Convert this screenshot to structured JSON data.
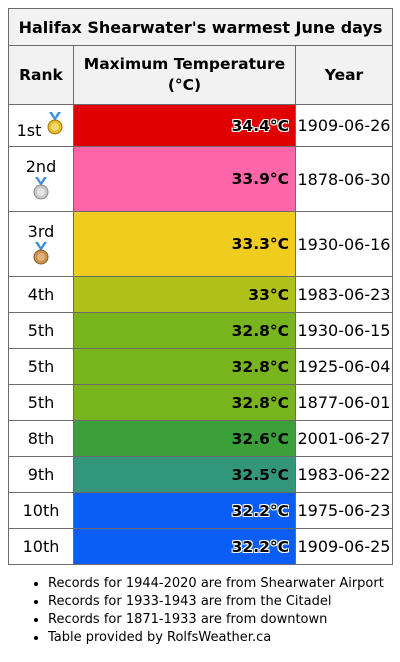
{
  "table": {
    "title": "Halifax Shearwater's warmest June days",
    "headers": {
      "rank": "Rank",
      "temp_line1": "Maximum Temperature",
      "temp_line2": "(°C)",
      "year": "Year"
    },
    "rows": [
      {
        "rank": "1st",
        "medal": "gold-medal-icon",
        "temp": "34.4°C",
        "date": "1909-06-26",
        "color": "#e00000",
        "outlined": true
      },
      {
        "rank": "2nd",
        "medal": "silver-medal-icon",
        "temp": "33.9°C",
        "date": "1878-06-30",
        "color": "#ff66aa",
        "outlined": false
      },
      {
        "rank": "3rd",
        "medal": "bronze-medal-icon",
        "temp": "33.3°C",
        "date": "1930-06-16",
        "color": "#f0cc1e",
        "outlined": false
      },
      {
        "rank": "4th",
        "temp": "33°C",
        "date": "1983-06-23",
        "color": "#b0c21a",
        "outlined": false
      },
      {
        "rank": "5th",
        "temp": "32.8°C",
        "date": "1930-06-15",
        "color": "#78b41e",
        "outlined": false
      },
      {
        "rank": "5th",
        "temp": "32.8°C",
        "date": "1925-06-04",
        "color": "#78b41e",
        "outlined": false
      },
      {
        "rank": "5th",
        "temp": "32.8°C",
        "date": "1877-06-01",
        "color": "#78b41e",
        "outlined": false
      },
      {
        "rank": "8th",
        "temp": "32.6°C",
        "date": "2001-06-27",
        "color": "#3ca03a",
        "outlined": false
      },
      {
        "rank": "9th",
        "temp": "32.5°C",
        "date": "1983-06-22",
        "color": "#32967a",
        "outlined": false
      },
      {
        "rank": "10th",
        "temp": "32.2°C",
        "date": "1975-06-23",
        "color": "#0a5ef5",
        "outlined": true
      },
      {
        "rank": "10th",
        "temp": "32.2°C",
        "date": "1909-06-25",
        "color": "#0a5ef5",
        "outlined": true
      }
    ]
  },
  "notes": [
    "Records for 1944-2020 are from Shearwater Airport",
    "Records for 1933-1943 are from the Citadel",
    "Records for 1871-1933 are from downtown",
    "Table provided by RolfsWeather.ca"
  ],
  "medal_colors": {
    "gold": "#e8b92e",
    "silver": "#c8c8c8",
    "bronze": "#c98f4e",
    "ribbon": "#3a8de0"
  }
}
